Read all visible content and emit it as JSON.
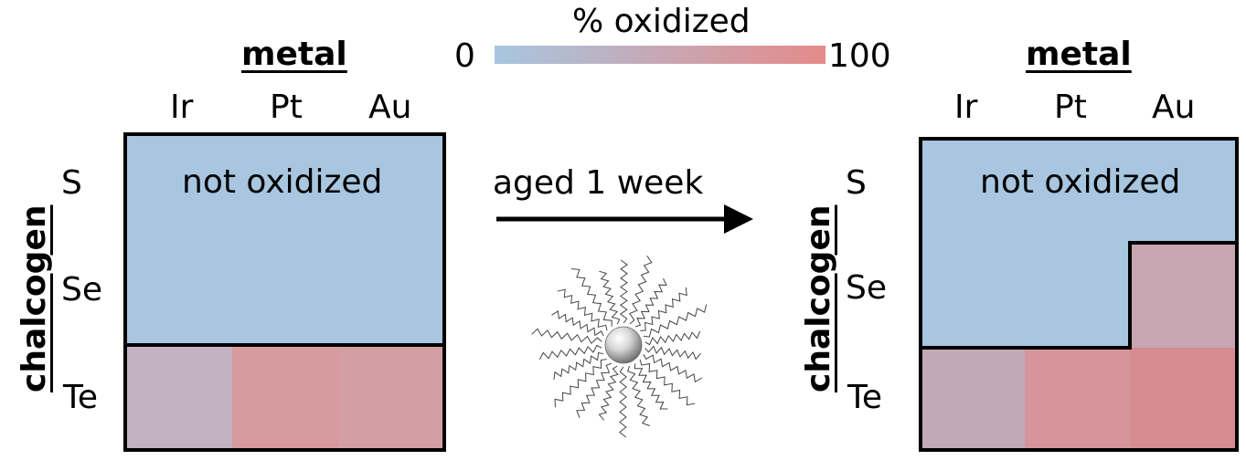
{
  "legend": {
    "title": "% oxidized",
    "min_label": "0",
    "max_label": "100",
    "color_low": "#a8c6e0",
    "color_high": "#e58a8a"
  },
  "left_panel": {
    "metal_header": "metal",
    "chalcogen_header": "chalcogen",
    "metals": [
      "Ir",
      "Pt",
      "Au"
    ],
    "chalcogens": [
      "S",
      "Se",
      "Te"
    ],
    "region_label": "not oxidized",
    "colors": {
      "unoxidized": "#a8c6e0",
      "Te_Ir": "#c3b2c2",
      "Te_Pt": "#d79a9e",
      "Te_Au": "#d49fa3"
    }
  },
  "arrow": {
    "label": "aged 1 week"
  },
  "right_panel": {
    "metal_header": "metal",
    "chalcogen_header": "chalcogen",
    "metals": [
      "Ir",
      "Pt",
      "Au"
    ],
    "chalcogens": [
      "S",
      "Se",
      "Te"
    ],
    "region_label": "not oxidized",
    "colors": {
      "unoxidized": "#a8c6e0",
      "Se_Au": "#c7a5b1",
      "Te_Ir": "#c2a9b8",
      "Te_Pt": "#d5959b",
      "Te_Au": "#d68c90"
    }
  },
  "nanoparticle": {
    "icon": "ligand-coated-nanoparticle"
  }
}
